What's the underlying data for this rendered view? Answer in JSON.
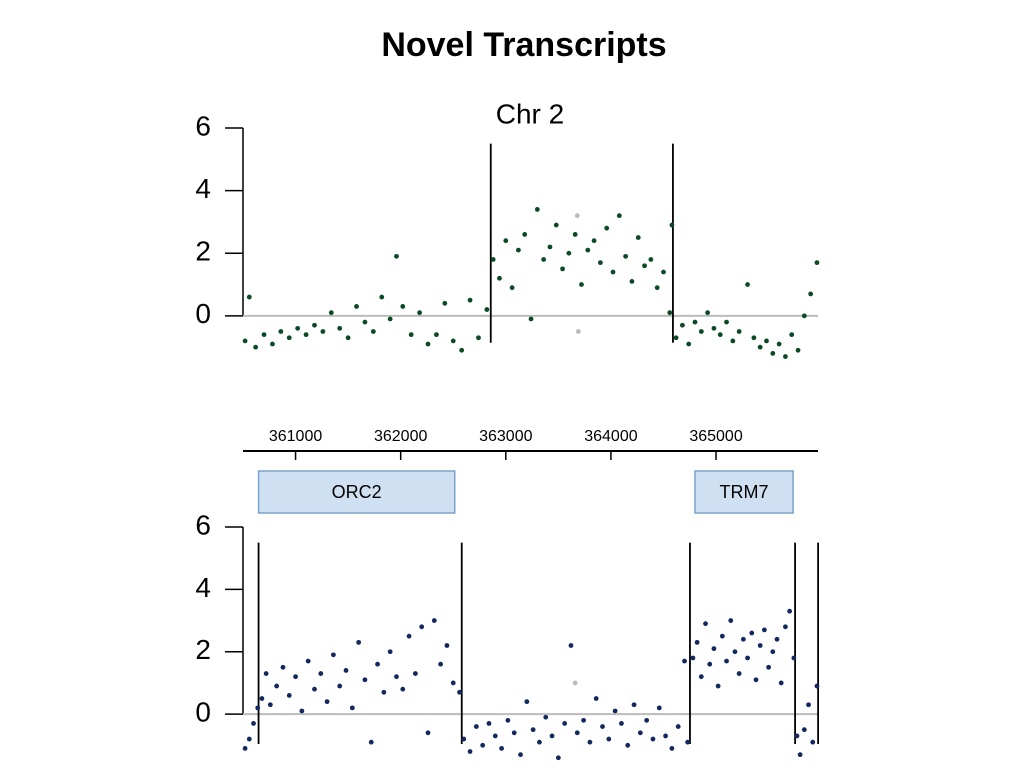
{
  "title": "Novel Transcripts",
  "chart_data": [
    {
      "type": "scatter",
      "title": "Chr 2",
      "xlim": [
        360500,
        365970
      ],
      "ylim": [
        -1.5,
        6
      ],
      "yticks": [
        0,
        2,
        4,
        6
      ],
      "zero_line": true,
      "breakpoints": [
        362857,
        364590
      ],
      "series": [
        {
          "color": "#0b4a24",
          "x": [
            360520,
            360560,
            360620,
            360700,
            360780,
            360860,
            360940,
            361020,
            361100,
            361180,
            361260,
            361340,
            361420,
            361500,
            361580,
            361660,
            361740,
            361820,
            361900,
            361960,
            362020,
            362100,
            362180,
            362260,
            362340,
            362420,
            362500,
            362580,
            362660,
            362740,
            362820,
            362880,
            362940,
            363000,
            363060,
            363120,
            363180,
            363240,
            363300,
            363360,
            363420,
            363480,
            363540,
            363600,
            363660,
            363720,
            363780,
            363840,
            363900,
            363960,
            364020,
            364080,
            364140,
            364200,
            364260,
            364320,
            364380,
            364440,
            364500,
            364560,
            364580,
            364620,
            364680,
            364740,
            364800,
            364860,
            364920,
            364980,
            365040,
            365100,
            365160,
            365220,
            365300,
            365360,
            365420,
            365480,
            365540,
            365600,
            365660,
            365720,
            365780,
            365840,
            365900,
            365960
          ],
          "values": [
            -0.8,
            0.6,
            -1.0,
            -0.6,
            -0.9,
            -0.5,
            -0.7,
            -0.4,
            -0.6,
            -0.3,
            -0.5,
            0.1,
            -0.4,
            -0.7,
            0.3,
            -0.2,
            -0.5,
            0.6,
            -0.1,
            1.9,
            0.3,
            -0.6,
            0.1,
            -0.9,
            -0.6,
            0.4,
            -0.8,
            -1.1,
            0.5,
            -0.7,
            0.2,
            1.8,
            1.2,
            2.4,
            0.9,
            2.1,
            2.6,
            -0.1,
            3.4,
            1.8,
            2.2,
            2.9,
            1.5,
            2.0,
            2.6,
            1.0,
            2.1,
            2.4,
            1.7,
            2.8,
            1.4,
            3.2,
            1.9,
            1.1,
            2.5,
            1.6,
            1.8,
            0.9,
            1.4,
            0.1,
            2.9,
            -0.7,
            -0.3,
            -0.9,
            -0.2,
            -0.5,
            0.1,
            -0.4,
            -0.6,
            -0.2,
            -0.8,
            -0.5,
            1.0,
            -0.7,
            -1.0,
            -0.8,
            -1.2,
            -0.9,
            -1.3,
            -0.6,
            -1.1,
            0.0,
            0.7,
            1.7
          ]
        },
        {
          "color": "#bbbbbb",
          "x": [
            363680,
            363690
          ],
          "values": [
            3.2,
            -0.5
          ]
        }
      ]
    },
    {
      "type": "track",
      "xlim": [
        360500,
        365970
      ],
      "xticks": [
        361000,
        362000,
        363000,
        364000,
        365000
      ],
      "genes": [
        {
          "name": "ORC2",
          "start": 360648,
          "end": 362514
        },
        {
          "name": "TRM7",
          "start": 364800,
          "end": 365733
        }
      ]
    },
    {
      "type": "scatter",
      "xlim": [
        360500,
        365970
      ],
      "ylim": [
        -1.6,
        6
      ],
      "yticks": [
        0,
        2,
        4,
        6
      ],
      "zero_line": true,
      "breakpoints": [
        360648,
        362581,
        364752,
        365752,
        365971
      ],
      "series": [
        {
          "color": "#13285e",
          "x": [
            360520,
            360560,
            360600,
            360640,
            360680,
            360720,
            360760,
            360820,
            360880,
            360940,
            361000,
            361060,
            361120,
            361180,
            361240,
            361300,
            361360,
            361420,
            361480,
            361540,
            361600,
            361660,
            361720,
            361780,
            361840,
            361900,
            361960,
            362020,
            362080,
            362140,
            362200,
            362260,
            362320,
            362380,
            362440,
            362500,
            362560,
            362600,
            362660,
            362720,
            362780,
            362840,
            362900,
            362960,
            363020,
            363080,
            363140,
            363200,
            363260,
            363320,
            363380,
            363440,
            363500,
            363560,
            363620,
            363680,
            363740,
            363800,
            363860,
            363920,
            363980,
            364040,
            364100,
            364160,
            364220,
            364280,
            364340,
            364400,
            364460,
            364520,
            364580,
            364640,
            364700,
            364730,
            364780,
            364820,
            364860,
            364900,
            364940,
            364980,
            365020,
            365060,
            365100,
            365140,
            365180,
            365220,
            365260,
            365300,
            365340,
            365380,
            365420,
            365460,
            365500,
            365540,
            365580,
            365620,
            365660,
            365700,
            365740,
            365770,
            365800,
            365840,
            365880,
            365920,
            365960
          ],
          "values": [
            -1.1,
            -0.8,
            -0.3,
            0.2,
            0.5,
            1.3,
            0.3,
            0.9,
            1.5,
            0.6,
            1.2,
            0.1,
            1.7,
            0.8,
            1.3,
            0.4,
            1.9,
            0.9,
            1.4,
            0.2,
            2.3,
            1.1,
            -0.9,
            1.6,
            0.7,
            2.0,
            1.2,
            0.8,
            2.5,
            1.3,
            2.8,
            -0.6,
            3.0,
            1.6,
            2.2,
            1.0,
            0.7,
            -0.8,
            -1.2,
            -0.4,
            -1.0,
            -0.3,
            -0.7,
            -1.1,
            -0.2,
            -0.6,
            -1.3,
            0.4,
            -0.5,
            -0.9,
            -0.1,
            -0.7,
            -1.4,
            -0.3,
            2.2,
            -0.6,
            -0.2,
            -0.9,
            0.5,
            -0.4,
            -0.8,
            0.1,
            -0.3,
            -1.0,
            0.3,
            -0.6,
            -0.2,
            -0.8,
            0.2,
            -0.7,
            -1.1,
            -0.4,
            1.7,
            -0.9,
            1.8,
            2.3,
            1.2,
            2.9,
            1.6,
            2.1,
            0.9,
            2.5,
            1.7,
            3.0,
            2.0,
            1.3,
            2.4,
            1.8,
            2.6,
            1.1,
            2.2,
            2.7,
            1.5,
            2.0,
            2.4,
            1.0,
            2.8,
            3.3,
            1.8,
            -0.7,
            -1.3,
            -0.5,
            0.3,
            -0.9,
            0.9
          ]
        },
        {
          "color": "#bbbbbb",
          "x": [
            363660
          ],
          "values": [
            1.0
          ]
        }
      ]
    }
  ]
}
